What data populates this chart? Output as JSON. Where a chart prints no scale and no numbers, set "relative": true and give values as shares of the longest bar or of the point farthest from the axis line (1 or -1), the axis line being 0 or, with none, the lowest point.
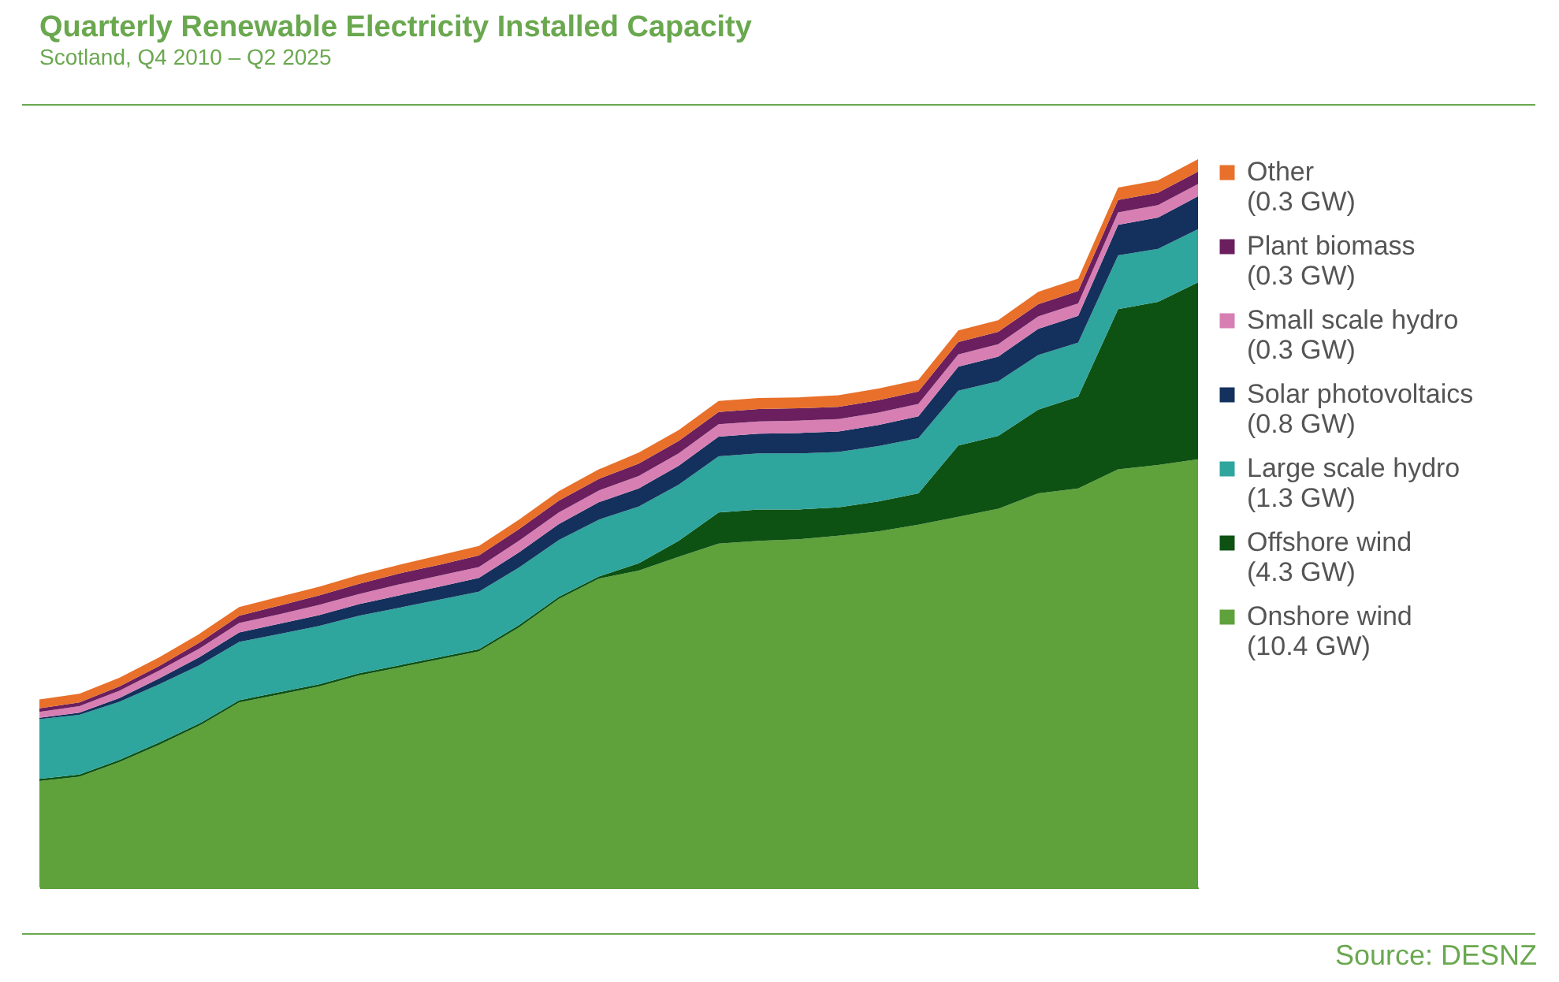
{
  "chart_data": {
    "type": "area",
    "title": "Quarterly Renewable Electricity Installed Capacity",
    "subtitle": "Scotland, Q4 2010 – Q2 2025",
    "annotations": [
      "Source: DESNZ"
    ],
    "relative": true,
    "stacked": true,
    "legend": "right",
    "grid": false,
    "tick_labels": false,
    "categories": [
      null,
      null,
      null,
      null,
      null,
      null,
      null,
      null,
      null,
      null,
      null,
      null,
      null,
      null,
      null,
      null,
      null,
      null,
      null,
      null,
      null,
      null,
      null,
      null,
      null,
      null,
      null,
      null,
      null,
      null
    ],
    "series": [
      {
        "name": "Onshore wind (10.4 GW)",
        "color": "#5fa13b",
        "values": [
          0.146,
          0.152,
          0.172,
          0.196,
          0.222,
          0.254,
          0.265,
          0.276,
          0.291,
          0.302,
          0.313,
          0.324,
          0.357,
          0.396,
          0.424,
          0.435,
          0.454,
          0.472,
          0.476,
          0.478,
          0.483,
          0.489,
          0.498,
          0.509,
          0.52,
          0.541,
          0.548,
          0.574,
          0.58,
          0.588
        ]
      },
      {
        "name": "Offshore wind (4.3 GW)",
        "color": "#0d5212",
        "values": [
          0.003,
          0.003,
          0.003,
          0.003,
          0.003,
          0.003,
          0.003,
          0.003,
          0.003,
          0.003,
          0.003,
          0.003,
          0.003,
          0.003,
          0.003,
          0.01,
          0.022,
          0.043,
          0.043,
          0.041,
          0.039,
          0.041,
          0.043,
          0.098,
          0.1,
          0.115,
          0.126,
          0.22,
          0.224,
          0.243
        ]
      },
      {
        "name": "Large scale hydro (1.3 GW)",
        "color": "#2ea59d",
        "values": [
          0.082,
          0.082,
          0.08,
          0.08,
          0.08,
          0.08,
          0.08,
          0.08,
          0.079,
          0.079,
          0.079,
          0.079,
          0.079,
          0.078,
          0.078,
          0.078,
          0.077,
          0.077,
          0.077,
          0.077,
          0.076,
          0.076,
          0.076,
          0.075,
          0.075,
          0.075,
          0.074,
          0.074,
          0.073,
          0.073
        ]
      },
      {
        "name": "Solar photovoltaics (0.8 GW)",
        "color": "#13315c",
        "values": [
          0.002,
          0.003,
          0.005,
          0.008,
          0.011,
          0.013,
          0.014,
          0.015,
          0.016,
          0.017,
          0.018,
          0.019,
          0.021,
          0.022,
          0.024,
          0.025,
          0.026,
          0.027,
          0.027,
          0.028,
          0.028,
          0.029,
          0.03,
          0.033,
          0.034,
          0.036,
          0.037,
          0.042,
          0.043,
          0.045
        ]
      },
      {
        "name": "Small scale hydro (0.3 GW)",
        "color": "#d77fb3",
        "values": [
          0.008,
          0.009,
          0.01,
          0.011,
          0.012,
          0.013,
          0.013,
          0.014,
          0.014,
          0.015,
          0.015,
          0.015,
          0.016,
          0.016,
          0.016,
          0.017,
          0.017,
          0.017,
          0.017,
          0.017,
          0.017,
          0.017,
          0.017,
          0.017,
          0.017,
          0.017,
          0.017,
          0.017,
          0.017,
          0.017
        ]
      },
      {
        "name": "Plant biomass (0.3 GW)",
        "color": "#6b1f5e",
        "values": [
          0.005,
          0.005,
          0.006,
          0.006,
          0.008,
          0.01,
          0.012,
          0.013,
          0.014,
          0.015,
          0.015,
          0.016,
          0.016,
          0.016,
          0.016,
          0.017,
          0.017,
          0.017,
          0.017,
          0.017,
          0.017,
          0.017,
          0.017,
          0.017,
          0.017,
          0.017,
          0.017,
          0.017,
          0.017,
          0.017
        ]
      },
      {
        "name": "Other (0.3 GW)",
        "color": "#e8702a",
        "values": [
          0.012,
          0.012,
          0.012,
          0.012,
          0.012,
          0.012,
          0.012,
          0.012,
          0.012,
          0.012,
          0.013,
          0.013,
          0.013,
          0.013,
          0.013,
          0.015,
          0.015,
          0.015,
          0.015,
          0.015,
          0.016,
          0.016,
          0.016,
          0.016,
          0.016,
          0.017,
          0.017,
          0.017,
          0.017,
          0.017
        ]
      }
    ]
  }
}
